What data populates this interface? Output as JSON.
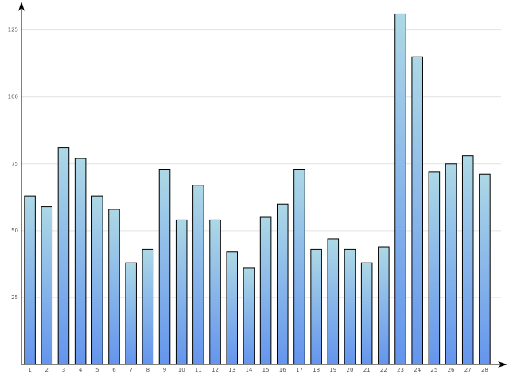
{
  "chart_data": {
    "type": "bar",
    "categories": [
      "1",
      "2",
      "3",
      "4",
      "5",
      "6",
      "7",
      "8",
      "9",
      "10",
      "11",
      "12",
      "13",
      "14",
      "15",
      "16",
      "17",
      "18",
      "19",
      "20",
      "21",
      "22",
      "23",
      "24",
      "25",
      "26",
      "27",
      "28"
    ],
    "values": [
      63,
      59,
      81,
      77,
      63,
      58,
      38,
      43,
      73,
      54,
      67,
      54,
      42,
      36,
      55,
      60,
      73,
      43,
      47,
      43,
      38,
      44,
      131,
      115,
      72,
      75,
      78,
      71
    ],
    "color": [
      "#add8e6",
      "#6495ed"
    ],
    "ylim": [
      0,
      135
    ],
    "yticks": [
      25,
      50,
      75,
      100,
      125
    ],
    "grid": true
  }
}
